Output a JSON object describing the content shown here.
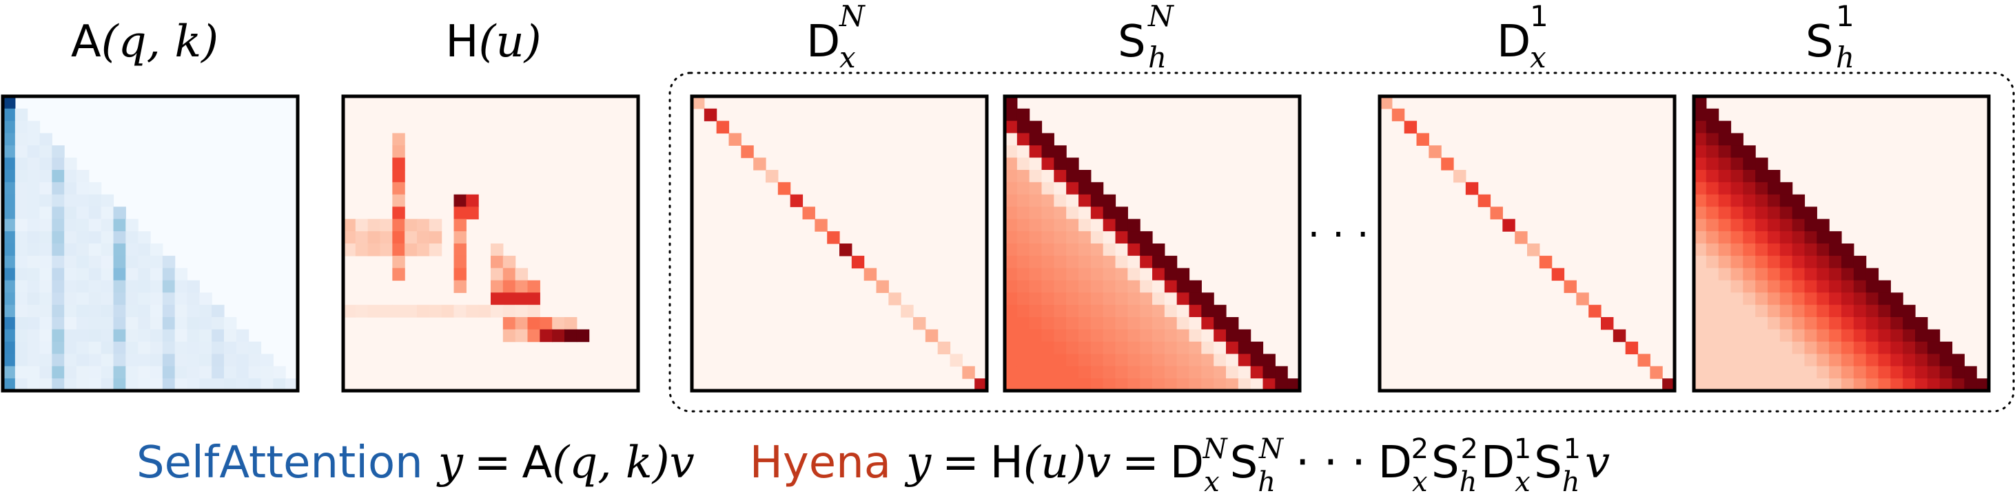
{
  "colors": {
    "attention_scale": [
      "#f7fbff",
      "#08306b"
    ],
    "hyena_scale": [
      "#fff5f0",
      "#67000d"
    ],
    "self_attention_label": "#1f5fa8",
    "hyena_label": "#c0391b",
    "frame": "#000000"
  },
  "headers": {
    "attention": {
      "base": "A",
      "args": "(q, k)"
    },
    "hyena": {
      "base": "H",
      "args": "(u)"
    },
    "diag_n": {
      "base": "D",
      "sub": "x",
      "sup": "N"
    },
    "toeplitz_n": {
      "base": "S",
      "sub": "h",
      "sup": "N"
    },
    "diag_1": {
      "base": "D",
      "sub": "x",
      "sup": "1"
    },
    "toeplitz_1": {
      "base": "S",
      "sub": "h",
      "sup": "1"
    }
  },
  "ellipsis": "· · ·",
  "formula": {
    "self_attention_name": "SelfAttention",
    "self_attention_eq": "y = A(q, k)v",
    "hyena_name": "Hyena",
    "hyena_eq": "y = H(u)v = D_x^N S_h^N · · · D_x^2 S_h^2 D_x^1 S_h^1 v"
  }
}
